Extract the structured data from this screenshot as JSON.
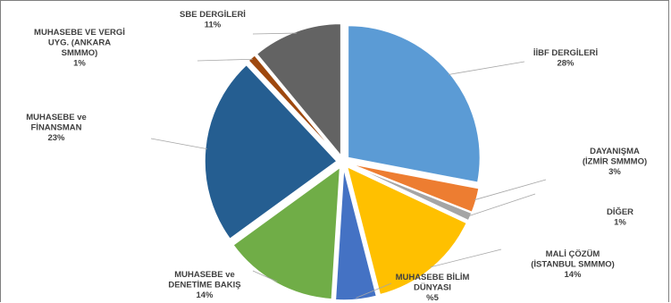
{
  "chart_data": {
    "type": "pie",
    "slices": [
      {
        "name": "İİBF DERGİLERİ",
        "label_lines": [
          "İİBF DERGİLERİ",
          "28%"
        ],
        "value": 28,
        "color": "#5b9bd5"
      },
      {
        "name": "DAYANIŞMA (İZMİR SMMMO)",
        "label_lines": [
          "DAYANIŞMA",
          "(İZMİR SMMMO)",
          "3%"
        ],
        "value": 3,
        "color": "#ed7d31"
      },
      {
        "name": "DİĞER",
        "label_lines": [
          "DİĞER",
          "1%"
        ],
        "value": 1,
        "color": "#a5a5a5"
      },
      {
        "name": "MALİ ÇÖZÜM (İSTANBUL SMMMO)",
        "label_lines": [
          "MALİ ÇÖZÜM",
          "(İSTANBUL SMMMO)",
          "14%"
        ],
        "value": 14,
        "color": "#ffc000"
      },
      {
        "name": "MUHASEBE BİLİM DÜNYASI",
        "label_lines": [
          "MUHASEBE BİLİM",
          "DÜNYASI",
          "%5"
        ],
        "value": 5,
        "color": "#4472c4"
      },
      {
        "name": "MUHASEBE ve DENETİME BAKIŞ",
        "label_lines": [
          "MUHASEBE ve",
          "DENETİME BAKIŞ",
          "14%"
        ],
        "value": 14,
        "color": "#70ad47"
      },
      {
        "name": "MUHASEBE ve FİNANSMAN",
        "label_lines": [
          "MUHASEBE ve",
          "FİNANSMAN",
          "23%"
        ],
        "value": 23,
        "color": "#255e91"
      },
      {
        "name": "MUHASEBE VE VERGİ UYG. (ANKARA SMMMO)",
        "label_lines": [
          "MUHASEBE VE VERGİ",
          "UYG. (ANKARA",
          "SMMMO)",
          "1%"
        ],
        "value": 1,
        "color": "#9e480e"
      },
      {
        "name": "SBE DERGİLERİ",
        "label_lines": [
          "SBE DERGİLERİ",
          "11%"
        ],
        "value": 11,
        "color": "#636363"
      }
    ],
    "start_angle_deg": 0,
    "direction": "clockwise",
    "exploded": true,
    "legend": "none"
  }
}
